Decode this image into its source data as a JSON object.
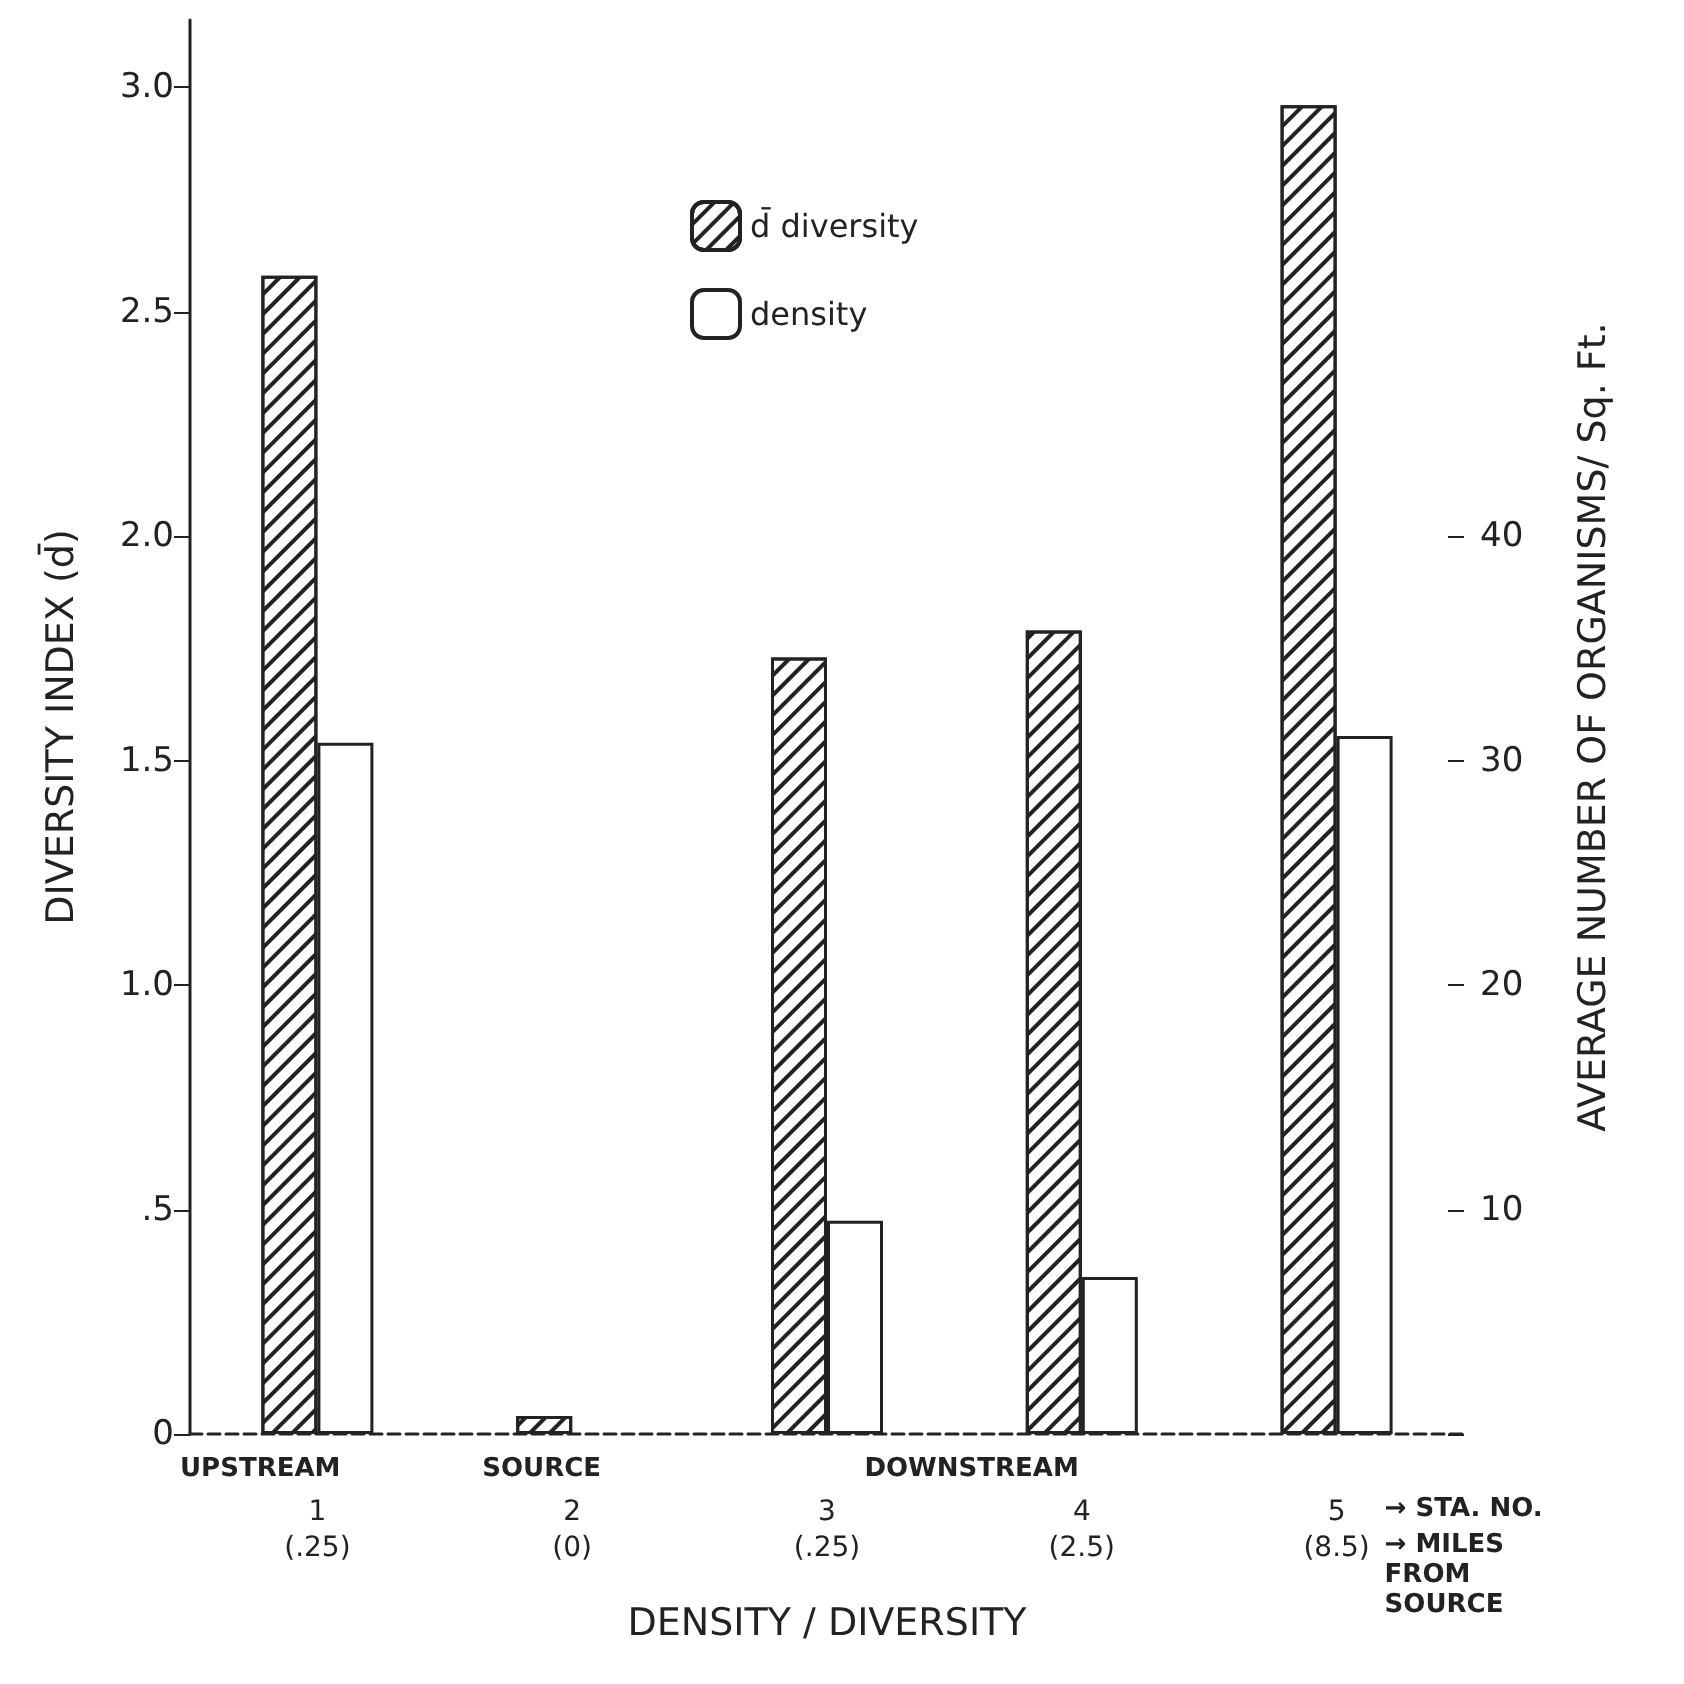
{
  "chart_data": {
    "type": "bar",
    "xlabel": "DENSITY / DIVERSITY",
    "ylabel": "DIVERSITY INDEX (d̄)",
    "y2label": "AVERAGE NUMBER OF ORGANISMS/ Sq. Ft.",
    "categories": [
      "1\n(.25)",
      "2\n(0)",
      "3\n(.25)",
      "4\n(2.5)",
      "5\n(8.5)"
    ],
    "series": [
      {
        "name": "d̄ diversity",
        "color": "#222222",
        "values": [
          2.58,
          0.04,
          1.73,
          1.79,
          2.96
        ]
      },
      {
        "name": "density",
        "color": "#ffffff",
        "axis": "y2",
        "values": [
          30.8,
          null,
          9.5,
          7.0,
          31.1
        ]
      }
    ],
    "ylim": [
      0,
      3.15
    ],
    "yticks": [
      0,
      {
        "value": 0.5,
        "label": ".5"
      },
      {
        "value": 1,
        "label": "1.0"
      },
      1.5,
      {
        "value": 2,
        "label": "2.0"
      },
      2.5,
      {
        "value": 3,
        "label": "3.0"
      }
    ],
    "y2lim": [
      0,
      63
    ],
    "y2ticks": [
      {
        "value": 0,
        "label": null
      },
      10,
      20,
      30,
      40
    ],
    "legend": "top",
    "grid": false,
    "annotations": [
      "UPSTREAM",
      "SOURCE",
      "DOWNSTREAM",
      "→ STA. NO.",
      "→ MILES FROM SOURCE"
    ]
  }
}
